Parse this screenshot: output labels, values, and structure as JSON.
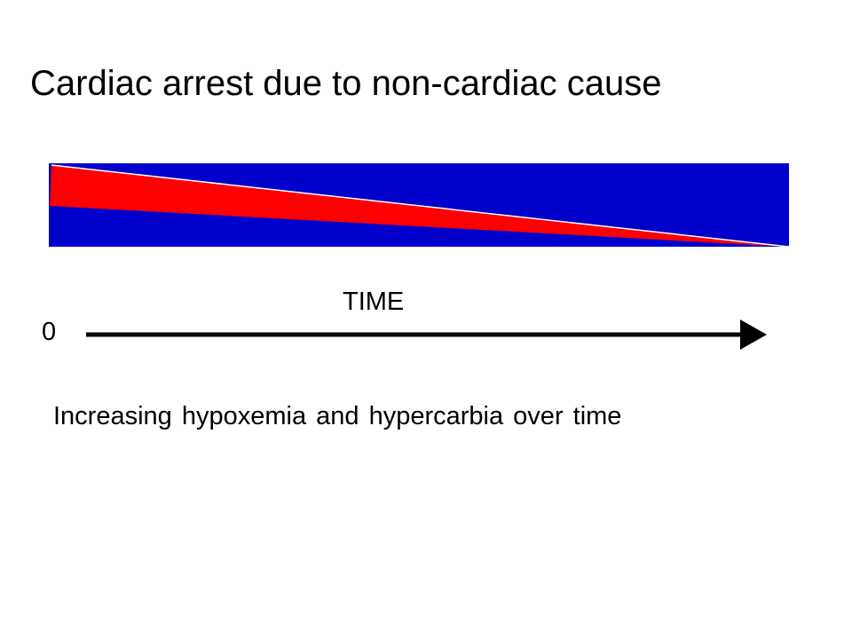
{
  "slide": {
    "title": "Cardiac arrest due to non-cardiac cause"
  },
  "diagram": {
    "time_label": "TIME",
    "origin_label": "0",
    "caption": "Increasing hypoxemia and hypercarbia over time",
    "colors": {
      "bar": "#0000cc",
      "wedge": "#ff0000",
      "arrow": "#000000",
      "edge_line": "#ffffff"
    }
  }
}
